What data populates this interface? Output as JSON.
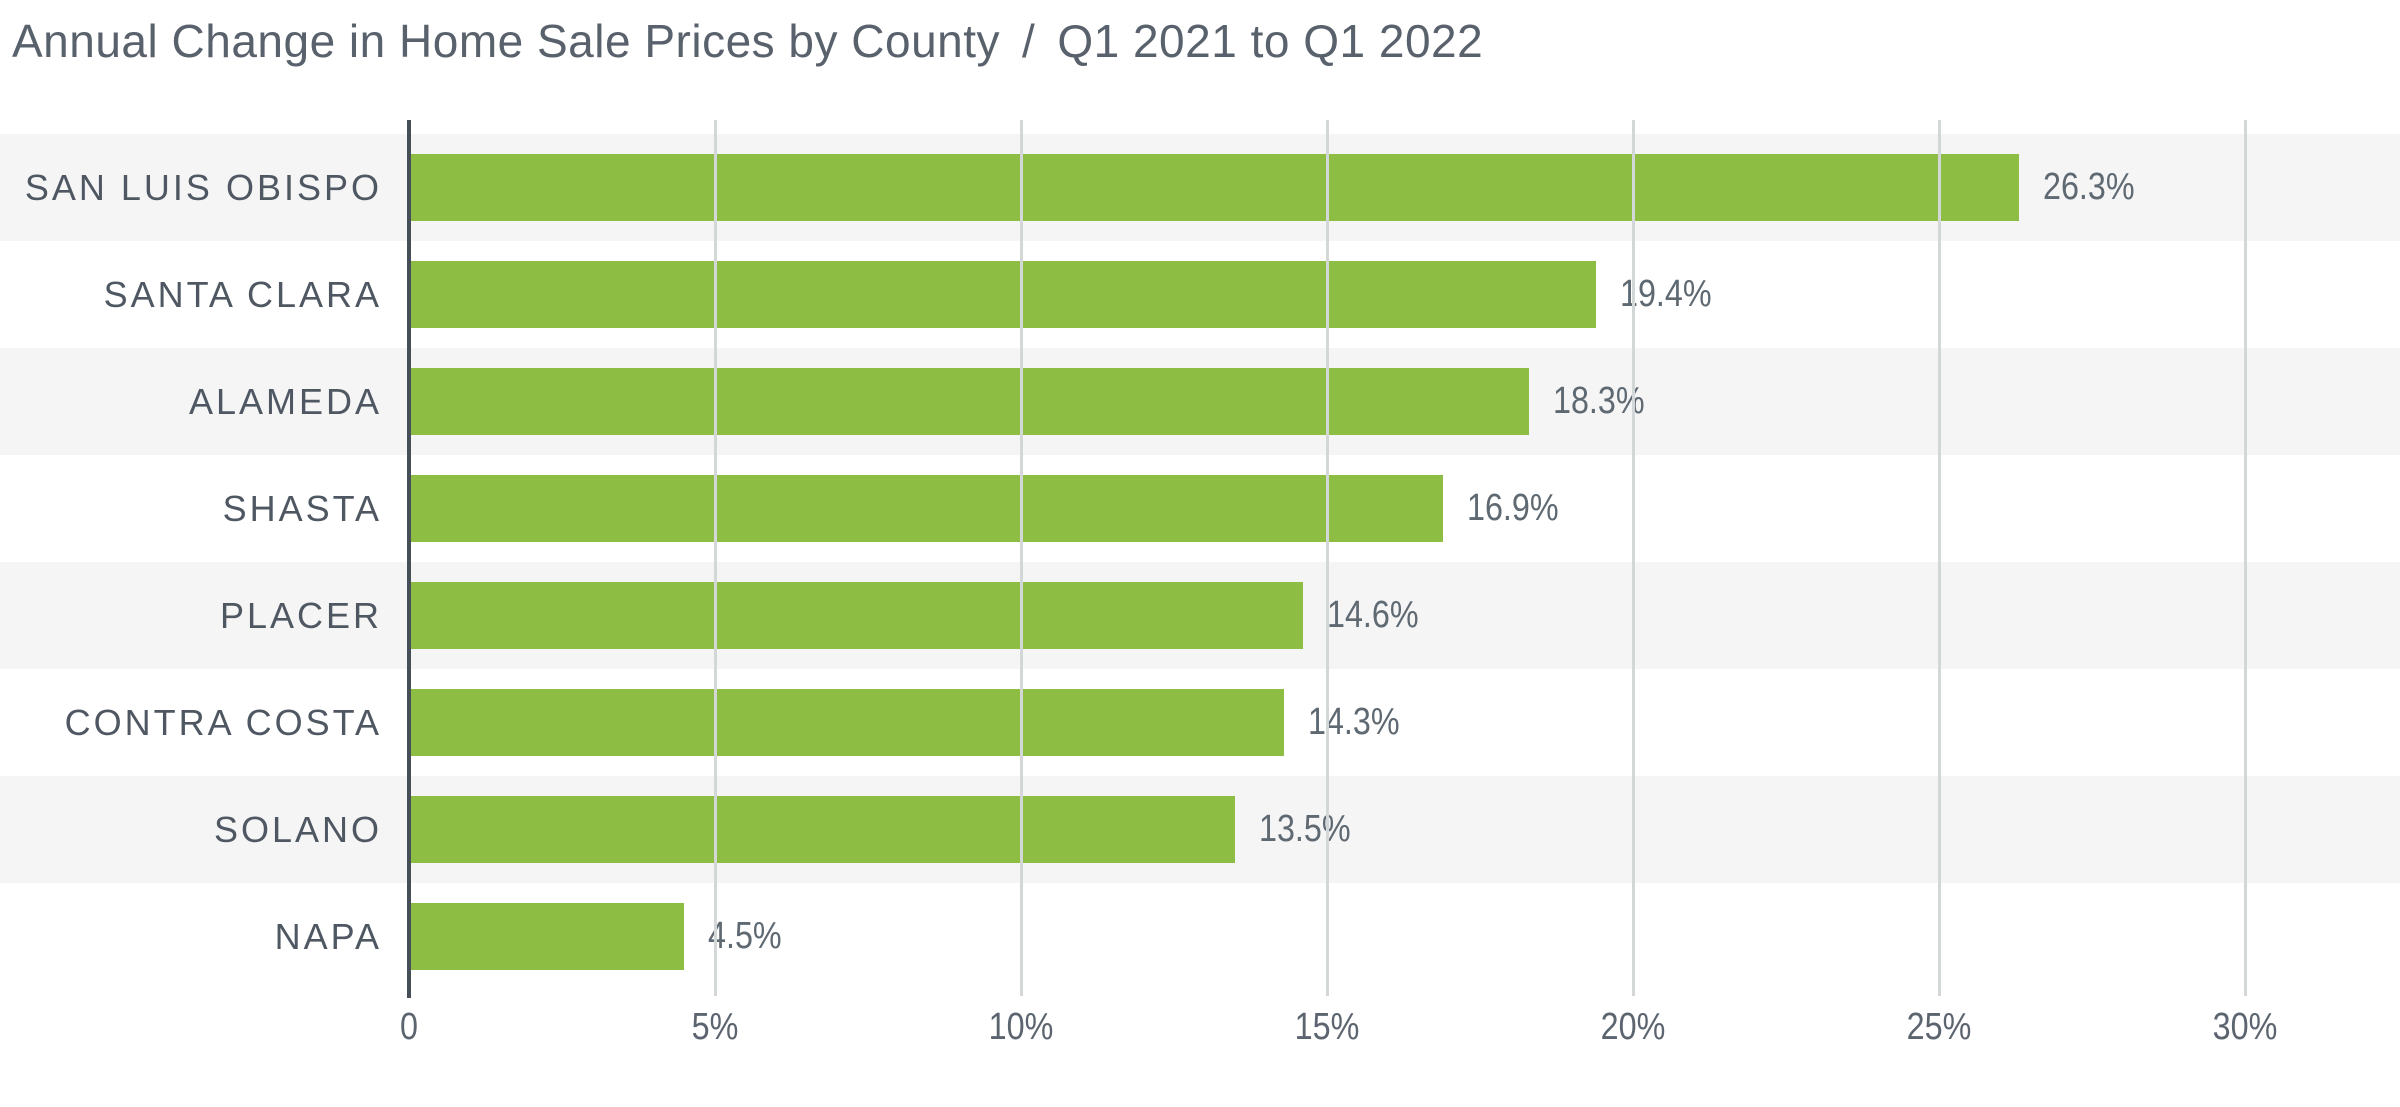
{
  "title": {
    "left": "Annual Change in Home Sale Prices by County",
    "separator": "/",
    "right": "Q1 2021 to Q1 2022"
  },
  "chart_data": {
    "type": "bar",
    "orientation": "horizontal",
    "title": "Annual Change in Home Sale Prices by County / Q1 2021 to Q1 2022",
    "categories": [
      "SAN LUIS OBISPO",
      "SANTA CLARA",
      "ALAMEDA",
      "SHASTA",
      "PLACER",
      "CONTRA COSTA",
      "SOLANO",
      "NAPA"
    ],
    "values": [
      26.3,
      19.4,
      18.3,
      16.9,
      14.6,
      14.3,
      13.5,
      4.5
    ],
    "value_labels": [
      "26.3%",
      "19.4%",
      "18.3%",
      "16.9%",
      "14.6%",
      "14.3%",
      "13.5%",
      "4.5%"
    ],
    "x_ticks": [
      {
        "value": 0,
        "label": "0"
      },
      {
        "value": 5,
        "label": "5%"
      },
      {
        "value": 10,
        "label": "10%"
      },
      {
        "value": 15,
        "label": "15%"
      },
      {
        "value": 20,
        "label": "20%"
      },
      {
        "value": 25,
        "label": "25%"
      },
      {
        "value": 30,
        "label": "30%"
      }
    ],
    "xlim": [
      0,
      32.5
    ],
    "xlabel": "",
    "ylabel": "",
    "grid": true,
    "legend": false,
    "row_stripes": "alternating light-gray full-width bands starting with first row",
    "colors": {
      "bar": "#8DBE43",
      "stripe": "#F5F5F6",
      "gridline": "#D4D7D7",
      "axis": "#464E57",
      "title_text": "#59626C",
      "category_text": "#4F5862",
      "value_text": "#5F6972",
      "tick_text": "#5C656F",
      "background": "#FFFFFF"
    }
  }
}
